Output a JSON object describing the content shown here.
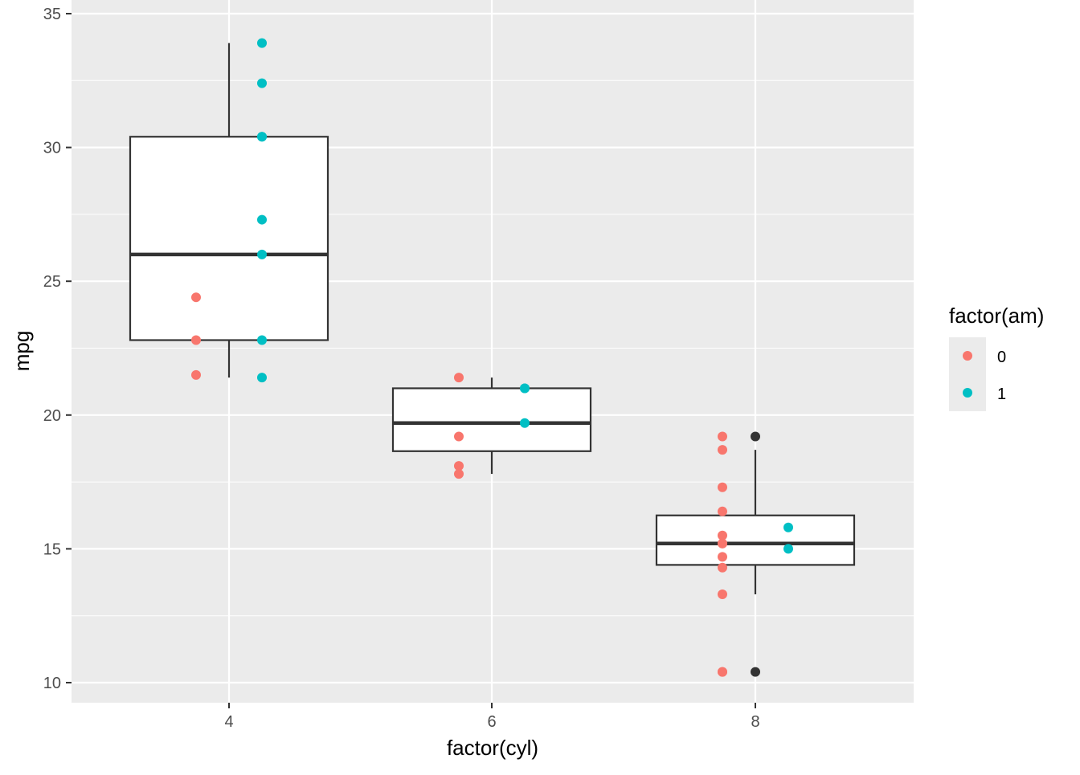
{
  "chart_data": {
    "type": "boxplot",
    "title": "",
    "xlabel": "factor(cyl)",
    "ylabel": "mpg",
    "ylim": [
      9.25,
      35.5
    ],
    "yticks": [
      10,
      15,
      20,
      25,
      30,
      35
    ],
    "categories": [
      "4",
      "6",
      "8"
    ],
    "boxes": [
      {
        "category": "4",
        "lower_whisker": 21.4,
        "q1": 22.8,
        "median": 26.0,
        "q3": 30.4,
        "upper_whisker": 33.9,
        "outliers": []
      },
      {
        "category": "6",
        "lower_whisker": 17.8,
        "q1": 18.65,
        "median": 19.7,
        "q3": 21.0,
        "upper_whisker": 21.4,
        "outliers": []
      },
      {
        "category": "8",
        "lower_whisker": 13.3,
        "q1": 14.4,
        "median": 15.2,
        "q3": 16.25,
        "upper_whisker": 18.7,
        "outliers": [
          10.4,
          19.2
        ]
      }
    ],
    "series": [
      {
        "name": "0",
        "color": "#F8766D",
        "points": {
          "4": [
            24.4,
            22.8,
            21.5
          ],
          "6": [
            21.4,
            18.1,
            19.2,
            17.8
          ],
          "8": [
            18.7,
            14.3,
            16.4,
            17.3,
            15.2,
            10.4,
            10.4,
            14.7,
            15.5,
            15.2,
            13.3,
            19.2
          ]
        }
      },
      {
        "name": "1",
        "color": "#00BFC4",
        "points": {
          "4": [
            22.8,
            32.4,
            30.4,
            33.9,
            27.3,
            26.0,
            30.4,
            21.4
          ],
          "6": [
            21.0,
            21.0,
            19.7
          ],
          "8": [
            15.8,
            15.0
          ]
        }
      }
    ],
    "legend": {
      "title": "factor(am)",
      "position": "right"
    },
    "grid": true
  }
}
